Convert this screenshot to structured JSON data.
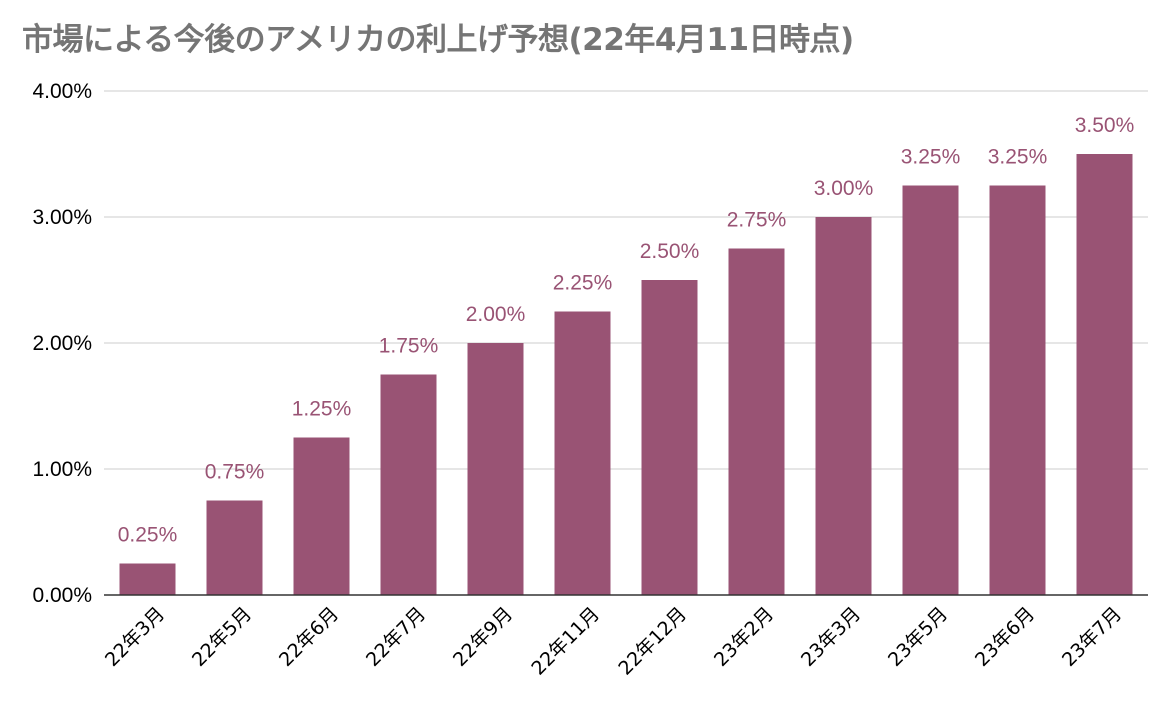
{
  "chart_data": {
    "type": "bar",
    "title": "市場による今後のアメリカの利上げ予想(22年4月11日時点)",
    "categories": [
      "22年3月",
      "22年5月",
      "22年6月",
      "22年7月",
      "22年9月",
      "22年11月",
      "22年12月",
      "23年2月",
      "23年3月",
      "23年5月",
      "23年6月",
      "23年7月"
    ],
    "values": [
      0.25,
      0.75,
      1.25,
      1.75,
      2.0,
      2.25,
      2.5,
      2.75,
      3.0,
      3.25,
      3.25,
      3.5
    ],
    "data_labels": [
      "0.25%",
      "0.75%",
      "1.25%",
      "1.75%",
      "2.00%",
      "2.25%",
      "2.50%",
      "2.75%",
      "3.00%",
      "3.25%",
      "3.25%",
      "3.50%"
    ],
    "y_ticks": [
      0,
      1,
      2,
      3,
      4
    ],
    "y_tick_labels": [
      "0.00%",
      "1.00%",
      "2.00%",
      "3.00%",
      "4.00%"
    ],
    "ylim": [
      0,
      4
    ],
    "xlabel": "",
    "ylabel": "",
    "grid": true,
    "legend": "none",
    "bar_color": "#995374",
    "label_color": "#995374",
    "title_color": "#757575"
  }
}
